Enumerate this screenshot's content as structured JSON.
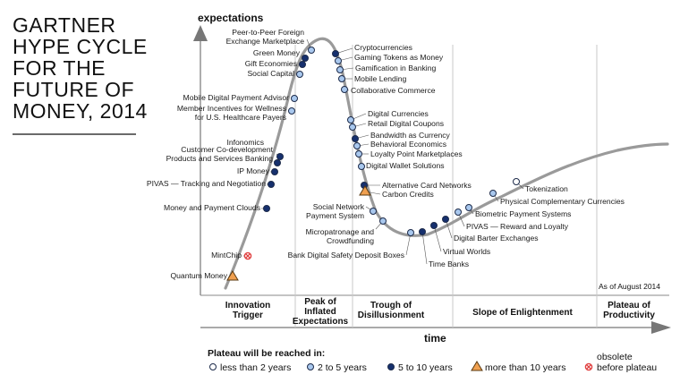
{
  "title_lines": [
    "GARTNER",
    "HYPE CYCLE",
    "FOR THE",
    "FUTURE OF",
    "MONEY, 2014"
  ],
  "axis": {
    "y_label": "expectations",
    "x_label": "time"
  },
  "as_of": "As of August 2014",
  "phases": [
    {
      "lines": [
        "Innovation",
        "Trigger"
      ]
    },
    {
      "lines": [
        "Peak of",
        "Inflated",
        "Expectations"
      ]
    },
    {
      "lines": [
        "Trough of",
        "Disillusionment"
      ]
    },
    {
      "lines": [
        "Slope of Enlightenment"
      ]
    },
    {
      "lines": [
        "Plateau of",
        "Productivity"
      ]
    }
  ],
  "colors": {
    "curve": "#9a9a9a",
    "white": "#ffffff",
    "light": "#a9c8ee",
    "dark": "#16306e",
    "triangle": "#f0a050",
    "obsolete": "#e04040"
  },
  "technologies": [
    {
      "lines": [
        "Quantum Money"
      ],
      "category": "triangle"
    },
    {
      "lines": [
        "MintChip"
      ],
      "category": "obsolete"
    },
    {
      "lines": [
        "Money and Payment Clouds"
      ],
      "category": "dark"
    },
    {
      "lines": [
        "PIVAS — Tracking and Negotiation"
      ],
      "category": "dark"
    },
    {
      "lines": [
        "IP Money"
      ],
      "category": "dark"
    },
    {
      "lines": [
        "Customer Co-development",
        "Products and Services Banking"
      ],
      "category": "dark"
    },
    {
      "lines": [
        "Infonomics"
      ],
      "category": "dark"
    },
    {
      "lines": [
        "Member Incentives for Wellness",
        "for U.S. Healthcare Payers"
      ],
      "category": "light"
    },
    {
      "lines": [
        "Mobile Digital Payment Advisor"
      ],
      "category": "light"
    },
    {
      "lines": [
        "Social Capital"
      ],
      "category": "light"
    },
    {
      "lines": [
        "Gift Economies"
      ],
      "category": "dark"
    },
    {
      "lines": [
        "Green Money"
      ],
      "category": "dark"
    },
    {
      "lines": [
        "Peer-to-Peer Foreign",
        "Exchange Marketplace"
      ],
      "category": "light"
    },
    {
      "lines": [
        "Cryptocurrencies"
      ],
      "category": "dark"
    },
    {
      "lines": [
        "Gaming Tokens as Money"
      ],
      "category": "light"
    },
    {
      "lines": [
        "Gamification in Banking"
      ],
      "category": "light"
    },
    {
      "lines": [
        "Mobile Lending"
      ],
      "category": "light"
    },
    {
      "lines": [
        "Collaborative Commerce"
      ],
      "category": "light"
    },
    {
      "lines": [
        "Digital Currencies"
      ],
      "category": "light"
    },
    {
      "lines": [
        "Retail Digital Coupons"
      ],
      "category": "light"
    },
    {
      "lines": [
        "Bandwidth as Currency"
      ],
      "category": "dark"
    },
    {
      "lines": [
        "Behavioral Economics"
      ],
      "category": "light"
    },
    {
      "lines": [
        "Loyalty Point Marketplaces"
      ],
      "category": "light"
    },
    {
      "lines": [
        "Digital Wallet Solutions"
      ],
      "category": "light"
    },
    {
      "lines": [
        "Alternative Card Networks"
      ],
      "category": "dark"
    },
    {
      "lines": [
        "Carbon Credits"
      ],
      "category": "triangle"
    },
    {
      "lines": [
        "Social Network",
        "Payment System"
      ],
      "category": "light"
    },
    {
      "lines": [
        "Micropatronage and",
        "Crowdfunding"
      ],
      "category": "light"
    },
    {
      "lines": [
        "Bank Digital Safety Deposit Boxes"
      ],
      "category": "light"
    },
    {
      "lines": [
        "Time Banks"
      ],
      "category": "dark"
    },
    {
      "lines": [
        "Virtual Worlds"
      ],
      "category": "dark"
    },
    {
      "lines": [
        "Digital Barter Exchanges"
      ],
      "category": "dark"
    },
    {
      "lines": [
        "PIVAS — Reward and Loyalty"
      ],
      "category": "light"
    },
    {
      "lines": [
        "Biometric Payment Systems"
      ],
      "category": "light"
    },
    {
      "lines": [
        "Physical Complementary Currencies"
      ],
      "category": "light"
    },
    {
      "lines": [
        "Tokenization"
      ],
      "category": "white"
    }
  ],
  "legend": {
    "title": "Plateau will be reached in:",
    "items": [
      {
        "category": "white",
        "label": "less than 2 years"
      },
      {
        "category": "light",
        "label": "2 to 5 years"
      },
      {
        "category": "dark",
        "label": "5 to 10 years"
      },
      {
        "category": "triangle",
        "label": "more than 10 years"
      },
      {
        "category": "obsolete",
        "lines": [
          "obsolete",
          "before plateau"
        ]
      }
    ]
  }
}
